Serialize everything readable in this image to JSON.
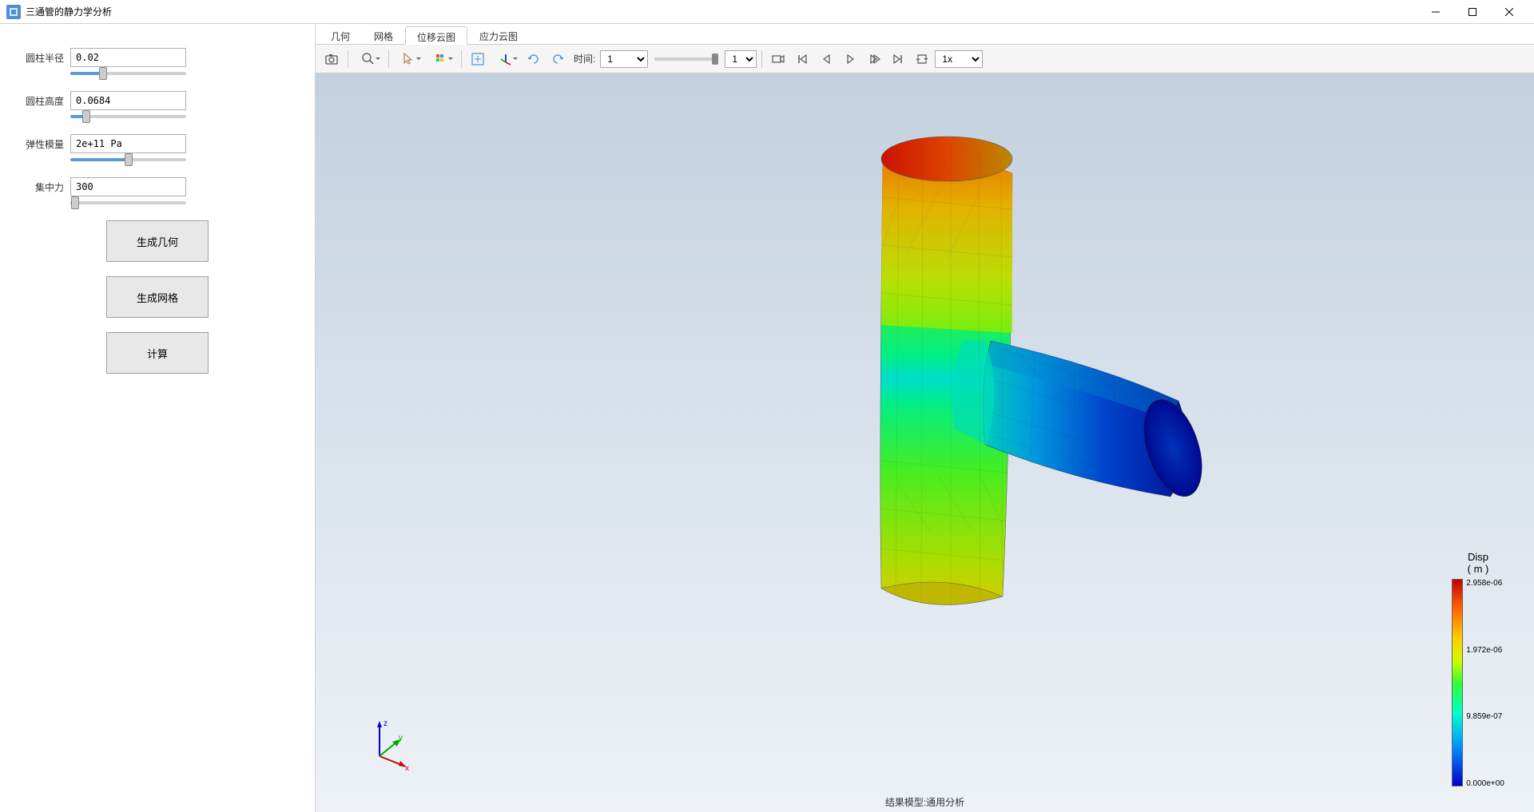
{
  "window": {
    "title": "三通管的静力学分析"
  },
  "sidebar": {
    "params": [
      {
        "label": "圆柱半径",
        "value": "0.02",
        "slider_pct": 28
      },
      {
        "label": "圆柱高度",
        "value": "0.0684",
        "slider_pct": 14
      },
      {
        "label": "弹性模量",
        "value": "2e+11 Pa",
        "slider_pct": 50
      },
      {
        "label": "集中力",
        "value": "300",
        "slider_pct": 4
      }
    ],
    "buttons": {
      "geom": "生成几何",
      "mesh": "生成网格",
      "compute": "计算"
    }
  },
  "tabs": {
    "items": [
      "几何",
      "网格",
      "位移云图",
      "应力云图"
    ],
    "active_index": 2
  },
  "toolbar": {
    "time_label": "时间:",
    "time_value": "1",
    "frame_value": "1",
    "speed_value": "1x"
  },
  "legend": {
    "title_line1": "Disp",
    "title_line2": "( m )",
    "ticks": [
      "2.958e-06",
      "1.972e-06",
      "9.859e-07",
      "0.000e+00"
    ],
    "gradient_stops": [
      "#c00000",
      "#ff5500",
      "#ffcc00",
      "#ccff00",
      "#33ff33",
      "#00ffcc",
      "#0099ff",
      "#0000cc"
    ]
  },
  "axis": {
    "x": "x",
    "y": "y",
    "z": "z",
    "x_color": "#cc0000",
    "y_color": "#00aa00",
    "z_color": "#0000cc"
  },
  "status": {
    "text": "结果模型:通用分析"
  },
  "viewport": {
    "bg_top": "#c3d0df",
    "bg_bottom": "#eef2f7"
  }
}
